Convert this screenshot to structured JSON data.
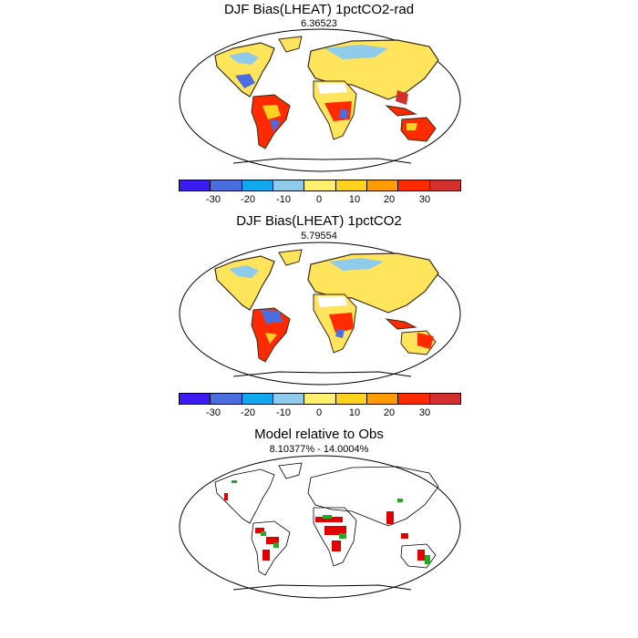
{
  "panels": [
    {
      "title": "DJF Bias(LHEAT) 1pctCO2-rad",
      "subtitle": "6.36523"
    },
    {
      "title": "DJF Bias(LHEAT) 1pctCO2",
      "subtitle": "5.79554"
    },
    {
      "title": "Model relative to Obs",
      "subtitle": "8.10377% - 14.0004%"
    }
  ],
  "colorbar": {
    "colors": [
      "#3b1bf2",
      "#4a6ee0",
      "#12a8f0",
      "#8fcbeb",
      "#ffef6e",
      "#ffd21f",
      "#ff9c05",
      "#ff2a00",
      "#d32f2f"
    ],
    "tick_labels": [
      "-30",
      "-20",
      "-10",
      "0",
      "10",
      "20",
      "30"
    ]
  }
}
